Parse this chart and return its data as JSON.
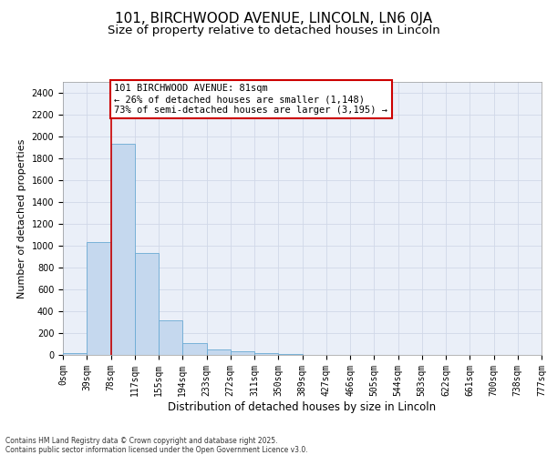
{
  "title1": "101, BIRCHWOOD AVENUE, LINCOLN, LN6 0JA",
  "title2": "Size of property relative to detached houses in Lincoln",
  "xlabel": "Distribution of detached houses by size in Lincoln",
  "ylabel": "Number of detached properties",
  "bar_values": [
    15,
    1030,
    1930,
    930,
    320,
    105,
    50,
    30,
    20,
    10,
    0,
    0,
    0,
    0,
    0,
    0,
    0,
    0,
    0,
    0
  ],
  "bar_labels": [
    "0sqm",
    "39sqm",
    "78sqm",
    "117sqm",
    "155sqm",
    "194sqm",
    "233sqm",
    "272sqm",
    "311sqm",
    "350sqm",
    "389sqm",
    "427sqm",
    "466sqm",
    "505sqm",
    "544sqm",
    "583sqm",
    "622sqm",
    "661sqm",
    "700sqm",
    "738sqm",
    "777sqm"
  ],
  "bar_color": "#c5d8ee",
  "bar_edge_color": "#6aaad4",
  "vline_index": 2,
  "vline_color": "#cc0000",
  "annotation_text": "101 BIRCHWOOD AVENUE: 81sqm\n← 26% of detached houses are smaller (1,148)\n73% of semi-detached houses are larger (3,195) →",
  "annotation_box_edgecolor": "#cc0000",
  "ylim": [
    0,
    2500
  ],
  "yticks": [
    0,
    200,
    400,
    600,
    800,
    1000,
    1200,
    1400,
    1600,
    1800,
    2000,
    2200,
    2400
  ],
  "grid_color": "#d0d8e8",
  "bg_color": "#eaeff8",
  "footnote": "Contains HM Land Registry data © Crown copyright and database right 2025.\nContains public sector information licensed under the Open Government Licence v3.0.",
  "title1_fontsize": 11,
  "title2_fontsize": 9.5,
  "xlabel_fontsize": 8.5,
  "ylabel_fontsize": 8,
  "tick_fontsize": 7,
  "annot_fontsize": 7.5,
  "footnote_fontsize": 5.5
}
